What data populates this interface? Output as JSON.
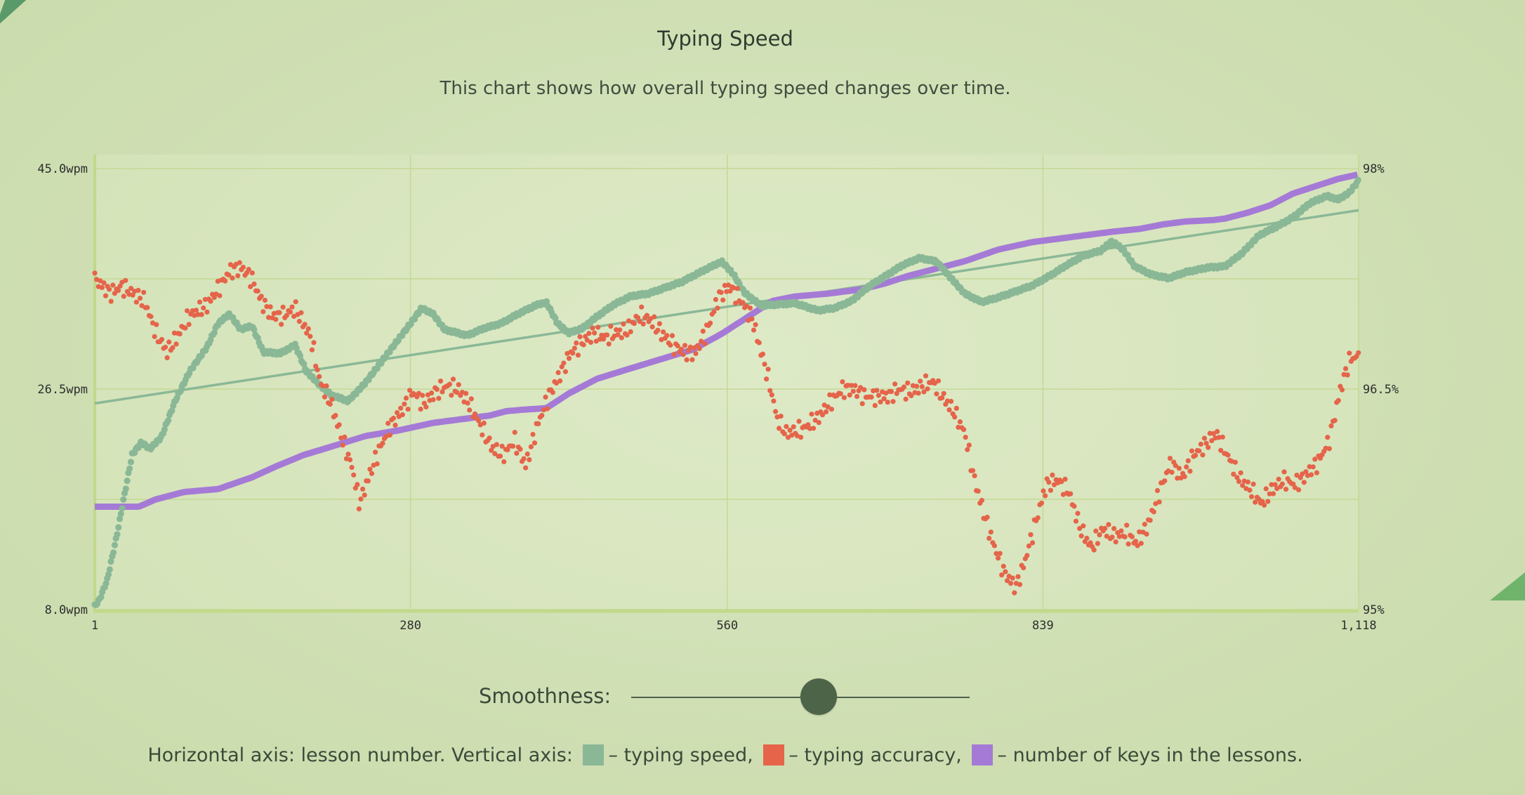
{
  "page": {
    "title": "Typing Speed",
    "subtitle": "This chart shows how overall typing speed changes over time."
  },
  "chart_data": {
    "type": "line",
    "title": "Typing Speed",
    "xlabel": "lesson number",
    "x_range": [
      1,
      1118
    ],
    "x_ticks": [
      "1",
      "280",
      "560",
      "839",
      "1,118"
    ],
    "y_left": {
      "label": "typing speed",
      "range": [
        8.0,
        45.0
      ],
      "ticks": [
        "45.0wpm",
        "26.5wpm",
        "8.0wpm"
      ]
    },
    "y_right": {
      "label": "typing accuracy",
      "range": [
        95,
        98
      ],
      "ticks": [
        "98%",
        "96.5%",
        "95%"
      ]
    },
    "series": [
      {
        "name": "typing speed",
        "axis": "left",
        "color": "#8ab896",
        "points": [
          [
            1,
            8.3
          ],
          [
            5,
            8.8
          ],
          [
            12,
            10.5
          ],
          [
            20,
            14
          ],
          [
            28,
            18
          ],
          [
            34,
            21
          ],
          [
            42,
            22
          ],
          [
            50,
            21.5
          ],
          [
            60,
            22.5
          ],
          [
            72,
            25.5
          ],
          [
            85,
            28
          ],
          [
            100,
            30
          ],
          [
            110,
            32
          ],
          [
            120,
            32.8
          ],
          [
            130,
            31.5
          ],
          [
            140,
            31.8
          ],
          [
            150,
            29.6
          ],
          [
            165,
            29.5
          ],
          [
            178,
            30.2
          ],
          [
            188,
            28
          ],
          [
            198,
            27
          ],
          [
            210,
            26
          ],
          [
            225,
            25.5
          ],
          [
            240,
            27
          ],
          [
            260,
            29.5
          ],
          [
            280,
            32
          ],
          [
            290,
            33.3
          ],
          [
            300,
            32.8
          ],
          [
            310,
            31.5
          ],
          [
            330,
            31
          ],
          [
            345,
            31.6
          ],
          [
            360,
            32
          ],
          [
            375,
            32.8
          ],
          [
            390,
            33.5
          ],
          [
            400,
            33.8
          ],
          [
            410,
            32
          ],
          [
            420,
            31.2
          ],
          [
            432,
            31.6
          ],
          [
            445,
            32.6
          ],
          [
            460,
            33.6
          ],
          [
            475,
            34.3
          ],
          [
            490,
            34.5
          ],
          [
            505,
            35
          ],
          [
            520,
            35.5
          ],
          [
            540,
            36.5
          ],
          [
            555,
            37.2
          ],
          [
            565,
            36.2
          ],
          [
            575,
            34.6
          ],
          [
            590,
            33.5
          ],
          [
            605,
            33.6
          ],
          [
            620,
            33.7
          ],
          [
            640,
            33.1
          ],
          [
            655,
            33.3
          ],
          [
            670,
            33.9
          ],
          [
            685,
            35.1
          ],
          [
            700,
            36
          ],
          [
            715,
            36.9
          ],
          [
            730,
            37.5
          ],
          [
            745,
            37.2
          ],
          [
            755,
            36.1
          ],
          [
            770,
            34.5
          ],
          [
            785,
            33.8
          ],
          [
            800,
            34.2
          ],
          [
            815,
            34.7
          ],
          [
            830,
            35.2
          ],
          [
            845,
            36
          ],
          [
            860,
            36.9
          ],
          [
            875,
            37.7
          ],
          [
            890,
            38.1
          ],
          [
            900,
            38.9
          ],
          [
            910,
            38.2
          ],
          [
            920,
            36.8
          ],
          [
            935,
            36.1
          ],
          [
            950,
            35.8
          ],
          [
            965,
            36.3
          ],
          [
            985,
            36.7
          ],
          [
            1000,
            36.8
          ],
          [
            1015,
            37.9
          ],
          [
            1030,
            39.4
          ],
          [
            1045,
            40.1
          ],
          [
            1060,
            40.9
          ],
          [
            1075,
            42.1
          ],
          [
            1090,
            42.7
          ],
          [
            1100,
            42.4
          ],
          [
            1110,
            43
          ],
          [
            1118,
            44
          ]
        ]
      },
      {
        "name": "typing speed trend",
        "axis": "left",
        "color": "#8ab896",
        "points": [
          [
            1,
            25.3
          ],
          [
            1118,
            41.5
          ]
        ]
      },
      {
        "name": "typing accuracy",
        "axis": "right",
        "color": "#e5644a",
        "points": [
          [
            1,
            97.25
          ],
          [
            8,
            97.2
          ],
          [
            15,
            97.15
          ],
          [
            25,
            97.2
          ],
          [
            35,
            97.15
          ],
          [
            45,
            97.1
          ],
          [
            55,
            96.88
          ],
          [
            65,
            96.75
          ],
          [
            75,
            96.87
          ],
          [
            85,
            97
          ],
          [
            100,
            97.07
          ],
          [
            110,
            97.18
          ],
          [
            120,
            97.3
          ],
          [
            130,
            97.33
          ],
          [
            140,
            97.25
          ],
          [
            148,
            97.1
          ],
          [
            158,
            97
          ],
          [
            168,
            97
          ],
          [
            178,
            97.05
          ],
          [
            185,
            96.95
          ],
          [
            192,
            96.85
          ],
          [
            200,
            96.55
          ],
          [
            210,
            96.4
          ],
          [
            220,
            96.15
          ],
          [
            228,
            95.98
          ],
          [
            235,
            95.72
          ],
          [
            243,
            95.9
          ],
          [
            252,
            96.08
          ],
          [
            262,
            96.25
          ],
          [
            272,
            96.35
          ],
          [
            282,
            96.48
          ],
          [
            292,
            96.4
          ],
          [
            302,
            96.48
          ],
          [
            312,
            96.52
          ],
          [
            322,
            96.5
          ],
          [
            332,
            96.4
          ],
          [
            342,
            96.25
          ],
          [
            352,
            96.1
          ],
          [
            362,
            96.05
          ],
          [
            372,
            96.15
          ],
          [
            382,
            95.98
          ],
          [
            392,
            96.25
          ],
          [
            402,
            96.45
          ],
          [
            412,
            96.6
          ],
          [
            422,
            96.75
          ],
          [
            432,
            96.82
          ],
          [
            442,
            96.88
          ],
          [
            452,
            96.85
          ],
          [
            462,
            96.88
          ],
          [
            472,
            96.9
          ],
          [
            482,
            97
          ],
          [
            492,
            96.97
          ],
          [
            502,
            96.88
          ],
          [
            512,
            96.8
          ],
          [
            522,
            96.75
          ],
          [
            532,
            96.75
          ],
          [
            542,
            96.9
          ],
          [
            552,
            97.12
          ],
          [
            562,
            97.2
          ],
          [
            572,
            97.1
          ],
          [
            582,
            96.98
          ],
          [
            590,
            96.75
          ],
          [
            597,
            96.55
          ],
          [
            604,
            96.3
          ],
          [
            612,
            96.2
          ],
          [
            625,
            96.22
          ],
          [
            640,
            96.3
          ],
          [
            652,
            96.42
          ],
          [
            662,
            96.5
          ],
          [
            672,
            96.5
          ],
          [
            682,
            96.45
          ],
          [
            692,
            96.45
          ],
          [
            702,
            96.45
          ],
          [
            712,
            96.5
          ],
          [
            722,
            96.48
          ],
          [
            732,
            96.52
          ],
          [
            742,
            96.55
          ],
          [
            750,
            96.45
          ],
          [
            760,
            96.35
          ],
          [
            770,
            96.2
          ],
          [
            778,
            95.9
          ],
          [
            785,
            95.7
          ],
          [
            795,
            95.45
          ],
          [
            805,
            95.25
          ],
          [
            815,
            95.15
          ],
          [
            822,
            95.3
          ],
          [
            832,
            95.58
          ],
          [
            842,
            95.85
          ],
          [
            852,
            95.88
          ],
          [
            862,
            95.8
          ],
          [
            872,
            95.55
          ],
          [
            882,
            95.42
          ],
          [
            892,
            95.55
          ],
          [
            902,
            95.5
          ],
          [
            912,
            95.52
          ],
          [
            922,
            95.45
          ],
          [
            932,
            95.58
          ],
          [
            942,
            95.8
          ],
          [
            952,
            96
          ],
          [
            962,
            95.9
          ],
          [
            972,
            96.05
          ],
          [
            982,
            96.12
          ],
          [
            992,
            96.2
          ],
          [
            1002,
            96.05
          ],
          [
            1012,
            95.9
          ],
          [
            1022,
            95.82
          ],
          [
            1032,
            95.72
          ],
          [
            1042,
            95.82
          ],
          [
            1052,
            95.88
          ],
          [
            1062,
            95.85
          ],
          [
            1072,
            95.92
          ],
          [
            1082,
            96
          ],
          [
            1092,
            96.15
          ],
          [
            1102,
            96.5
          ],
          [
            1110,
            96.7
          ],
          [
            1116,
            96.72
          ],
          [
            1118,
            96.72
          ]
        ]
      },
      {
        "name": "number of keys in the lessons",
        "axis": "right",
        "color": "#a57ad6",
        "points": [
          [
            1,
            95.7
          ],
          [
            40,
            95.7
          ],
          [
            55,
            95.75
          ],
          [
            80,
            95.8
          ],
          [
            110,
            95.82
          ],
          [
            140,
            95.9
          ],
          [
            160,
            95.97
          ],
          [
            185,
            96.05
          ],
          [
            215,
            96.12
          ],
          [
            240,
            96.18
          ],
          [
            270,
            96.22
          ],
          [
            300,
            96.27
          ],
          [
            330,
            96.3
          ],
          [
            350,
            96.32
          ],
          [
            365,
            96.35
          ],
          [
            380,
            96.36
          ],
          [
            400,
            96.37
          ],
          [
            420,
            96.47
          ],
          [
            445,
            96.57
          ],
          [
            470,
            96.63
          ],
          [
            500,
            96.7
          ],
          [
            530,
            96.77
          ],
          [
            556,
            96.88
          ],
          [
            580,
            97
          ],
          [
            600,
            97.1
          ],
          [
            620,
            97.13
          ],
          [
            650,
            97.15
          ],
          [
            680,
            97.18
          ],
          [
            700,
            97.22
          ],
          [
            720,
            97.27
          ],
          [
            745,
            97.32
          ],
          [
            770,
            97.37
          ],
          [
            800,
            97.45
          ],
          [
            830,
            97.5
          ],
          [
            860,
            97.53
          ],
          [
            880,
            97.55
          ],
          [
            900,
            97.57
          ],
          [
            925,
            97.59
          ],
          [
            945,
            97.62
          ],
          [
            965,
            97.64
          ],
          [
            990,
            97.65
          ],
          [
            1000,
            97.66
          ],
          [
            1020,
            97.7
          ],
          [
            1040,
            97.75
          ],
          [
            1060,
            97.83
          ],
          [
            1080,
            97.88
          ],
          [
            1100,
            97.93
          ],
          [
            1118,
            97.96
          ]
        ]
      }
    ]
  },
  "controls": {
    "smoothness_label": "Smoothness:",
    "smoothness_value": 0.5
  },
  "legend": {
    "prefix": "Horizontal axis: lesson number. Vertical axis:",
    "speed": "– typing speed,",
    "accuracy": "– typing accuracy,",
    "keys": "– number of keys in the lessons.",
    "speed_color": "#8ab896",
    "accuracy_color": "#e5644a",
    "keys_color": "#a57ad6"
  }
}
